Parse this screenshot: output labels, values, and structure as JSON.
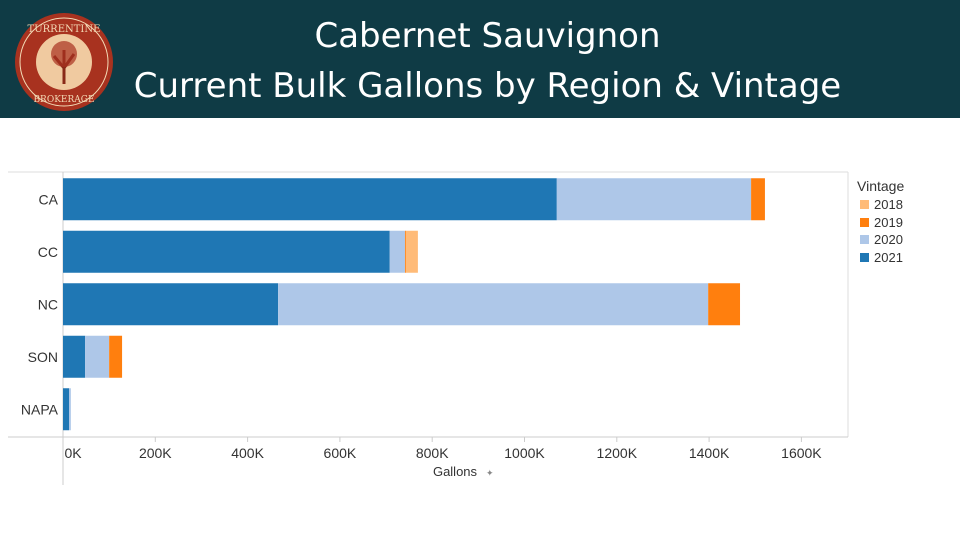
{
  "header": {
    "title_line1": "Cabernet Sauvignon",
    "title_line2": "Current Bulk Gallons by Region & Vintage",
    "logo_text_top": "TURRENTINE",
    "logo_text_bottom": "BROKERAGE"
  },
  "colors": {
    "header_bg": "#0f3b45",
    "2018": "#ffbb78",
    "2019": "#ff7f0e",
    "2020": "#aec7e8",
    "2021": "#1f77b4"
  },
  "chart_data": {
    "type": "bar",
    "orientation": "horizontal",
    "stacked": true,
    "title": "Cabernet Sauvignon Current Bulk Gallons by Region & Vintage",
    "xlabel": "Gallons",
    "ylabel": "",
    "categories": [
      "CA",
      "CC",
      "NC",
      "SON",
      "NAPA"
    ],
    "series": [
      {
        "name": "2021",
        "values": [
          1070,
          708,
          466,
          48,
          13
        ]
      },
      {
        "name": "2020",
        "values": [
          421,
          33,
          932,
          52,
          4
        ]
      },
      {
        "name": "2019",
        "values": [
          30,
          2,
          69,
          28,
          0
        ]
      },
      {
        "name": "2018",
        "values": [
          0,
          26,
          0,
          0,
          0
        ]
      }
    ],
    "stack_order": [
      "2021",
      "2020",
      "2019",
      "2018"
    ],
    "xlim": [
      0,
      1700
    ],
    "xticks": [
      0,
      200,
      400,
      600,
      800,
      1000,
      1200,
      1400,
      1600
    ],
    "xtick_labels": [
      "0K",
      "200K",
      "400K",
      "600K",
      "800K",
      "1000K",
      "1200K",
      "1400K",
      "1600K"
    ],
    "legend": {
      "title": "Vintage",
      "entries": [
        "2018",
        "2019",
        "2020",
        "2021"
      ],
      "placement": "right"
    },
    "grid": false
  }
}
